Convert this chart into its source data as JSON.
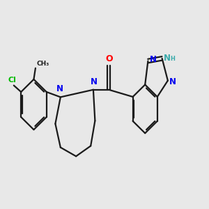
{
  "background_color": "#e8e8e8",
  "bond_color": "#1a1a1a",
  "N_color": "#0000ee",
  "O_color": "#ff0000",
  "Cl_color": "#00bb00",
  "NH_color": "#3aabab",
  "figsize": [
    3.0,
    3.0
  ],
  "dpi": 100,
  "xlim": [
    0,
    12
  ],
  "ylim": [
    2,
    9
  ]
}
